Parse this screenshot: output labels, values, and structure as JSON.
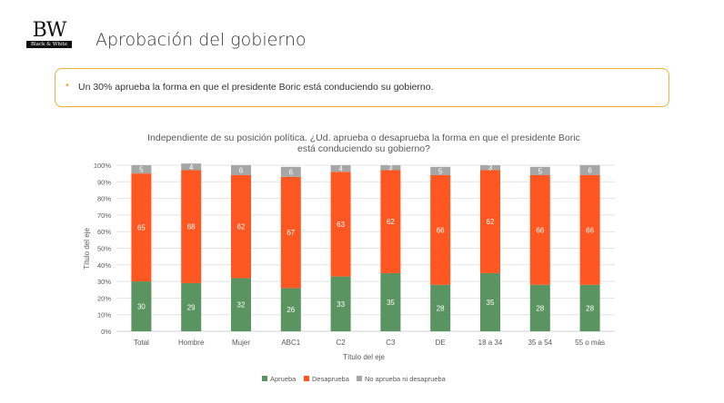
{
  "header": {
    "logo_text": "BW",
    "logo_subtext": "Black & White",
    "title": "Aprobación del gobierno"
  },
  "callout": {
    "bullet": "•",
    "text": "Un 30% aprueba la forma en que el presidente Boric está conduciendo su gobierno."
  },
  "chart_data": {
    "type": "bar",
    "stacked": true,
    "percent": true,
    "title_lines": [
      "Independiente de su posición política. ¿Ud. aprueba o desaprueba la forma en que el presidente Boric",
      "está conduciendo su gobierno?"
    ],
    "xlabel": "Título del eje",
    "ylabel": "Título del eje",
    "ylim": [
      0,
      100
    ],
    "yticks": [
      "0%",
      "10%",
      "20%",
      "30%",
      "40%",
      "50%",
      "60%",
      "70%",
      "80%",
      "90%",
      "100%"
    ],
    "grid": true,
    "legend_position": "bottom",
    "categories": [
      "Total",
      "Hombre",
      "Mujer",
      "ABC1",
      "C2",
      "C3",
      "DE",
      "18 a 34",
      "35 a 54",
      "55 o más"
    ],
    "series": [
      {
        "name": "Aprueba",
        "color": "#5a9460",
        "values": [
          30,
          29,
          32,
          26,
          33,
          35,
          28,
          35,
          28,
          28
        ]
      },
      {
        "name": "Desaprueba",
        "color": "#ff5722",
        "values": [
          65,
          68,
          62,
          67,
          63,
          62,
          66,
          62,
          66,
          66
        ]
      },
      {
        "name": "No aprueba ni desaprueba",
        "color": "#a6a6a6",
        "values": [
          5,
          4,
          6,
          6,
          4,
          3,
          5,
          3,
          5,
          6
        ]
      }
    ]
  }
}
